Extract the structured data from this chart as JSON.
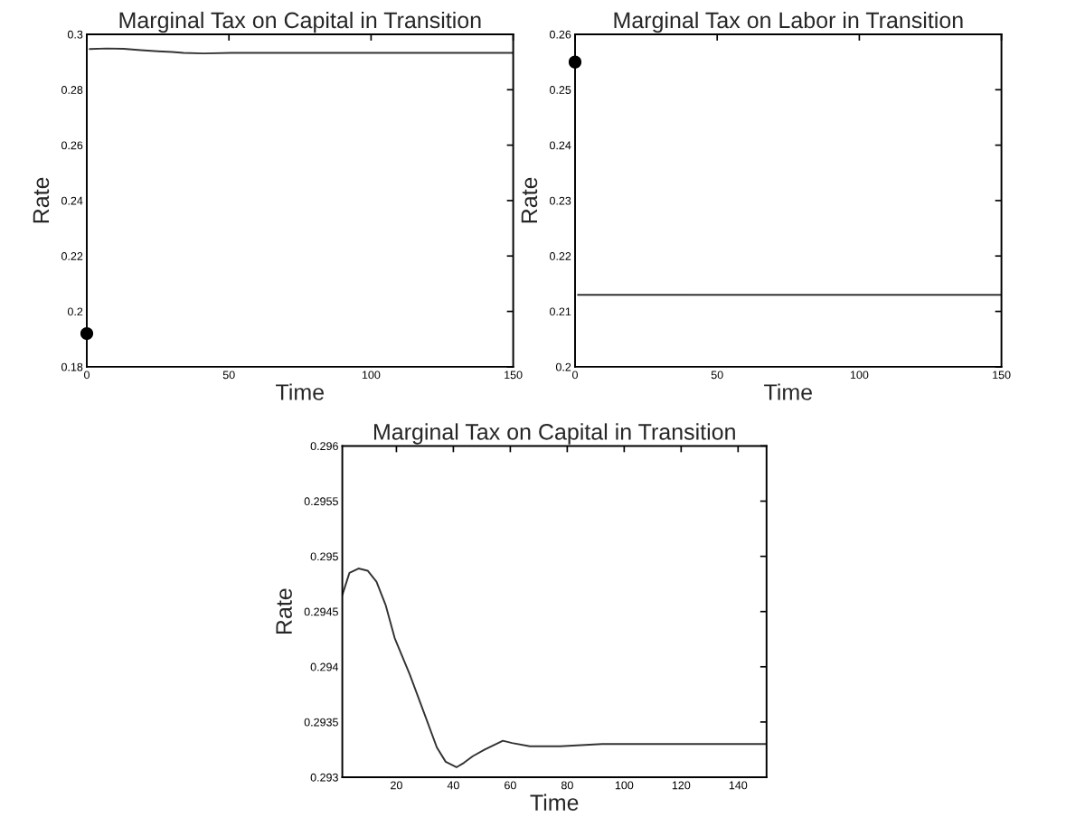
{
  "chart_data": [
    {
      "type": "line",
      "title": "Marginal Tax on Capital in Transition",
      "xlabel": "Time",
      "ylabel": "Rate",
      "xlim": [
        0,
        150
      ],
      "xticks": [
        0,
        50,
        100,
        150
      ],
      "ylim": [
        0.18,
        0.3
      ],
      "yticks": [
        0.18,
        0.2,
        0.22,
        0.24,
        0.26,
        0.28,
        0.3
      ],
      "series": [
        {
          "color": "#333333",
          "x": [
            1,
            7,
            13,
            19,
            25,
            30,
            34,
            41,
            51,
            58,
            67,
            150
          ],
          "values": [
            0.2947,
            0.2949,
            0.2948,
            0.2943,
            0.2939,
            0.2936,
            0.2933,
            0.2931,
            0.2933,
            0.2933,
            0.2933,
            0.2933
          ]
        },
        {
          "type": "scatter",
          "color": "#000000",
          "marker": "circle",
          "x": [
            0
          ],
          "values": [
            0.192
          ]
        }
      ]
    },
    {
      "type": "line",
      "title": "Marginal Tax on Labor in Transition",
      "xlabel": "Time",
      "ylabel": "Rate",
      "xlim": [
        0,
        150
      ],
      "xticks": [
        0,
        50,
        100,
        150
      ],
      "ylim": [
        0.2,
        0.26
      ],
      "yticks": [
        0.2,
        0.21,
        0.22,
        0.23,
        0.24,
        0.25,
        0.26
      ],
      "series": [
        {
          "color": "#333333",
          "x": [
            1,
            150
          ],
          "values": [
            0.213,
            0.213
          ]
        },
        {
          "type": "scatter",
          "color": "#000000",
          "marker": "circle",
          "x": [
            0
          ],
          "values": [
            0.255
          ]
        }
      ]
    },
    {
      "type": "line",
      "title": "Marginal Tax on Capital in Transition",
      "xlabel": "Time",
      "ylabel": "Rate",
      "xlim": [
        1,
        150
      ],
      "xticks": [
        20,
        40,
        60,
        80,
        100,
        120,
        140
      ],
      "ylim": [
        0.293,
        0.296
      ],
      "yticks": [
        0.293,
        0.2935,
        0.294,
        0.2945,
        0.295,
        0.2955,
        0.296
      ],
      "series": [
        {
          "color": "#333333",
          "x": [
            1,
            3.5,
            6.7,
            9.9,
            13,
            16.2,
            19.4,
            24.7,
            29.9,
            34.2,
            37.3,
            41.1,
            43.7,
            46.8,
            51,
            57.4,
            60.6,
            66.9,
            77.5,
            92.3,
            150
          ],
          "values": [
            0.29465,
            0.29485,
            0.29489,
            0.29487,
            0.29477,
            0.29456,
            0.29426,
            0.29393,
            0.29357,
            0.29327,
            0.29314,
            0.29309,
            0.29313,
            0.29319,
            0.29325,
            0.29333,
            0.29331,
            0.29328,
            0.29328,
            0.2933,
            0.2933
          ]
        }
      ]
    }
  ]
}
